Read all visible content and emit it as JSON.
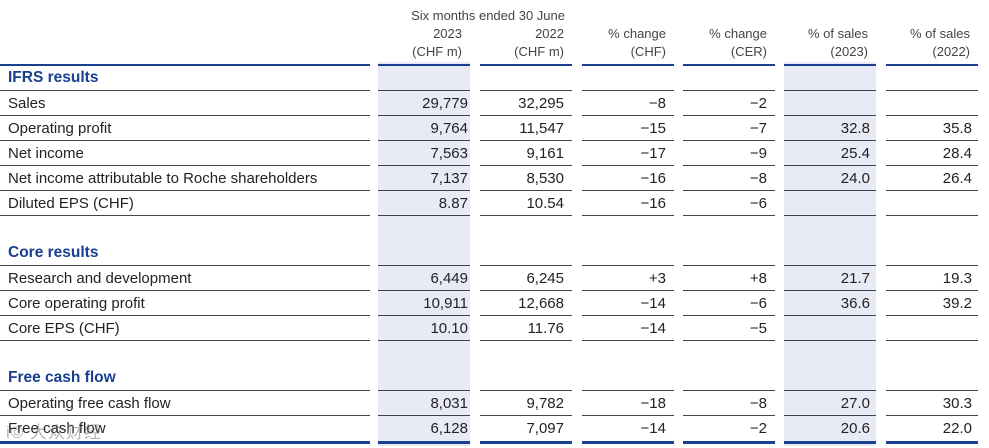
{
  "header": {
    "period": "Six months ended 30 June",
    "columns": [
      {
        "line1": "2023",
        "line2": "(CHF m)"
      },
      {
        "line1": "2022",
        "line2": "(CHF m)"
      },
      {
        "line1": "% change",
        "line2": "(CHF)"
      },
      {
        "line1": "% change",
        "line2": "(CER)"
      },
      {
        "line1": "% of sales",
        "line2": "(2023)"
      },
      {
        "line1": "% of sales",
        "line2": "(2022)"
      }
    ]
  },
  "sections": [
    {
      "title": "IFRS results",
      "rows": [
        {
          "label": "Sales",
          "v2023": "29,779",
          "v2022": "32,295",
          "chf": "−8",
          "cer": "−2",
          "ps2023": "",
          "ps2022": ""
        },
        {
          "label": "Operating profit",
          "v2023": "9,764",
          "v2022": "11,547",
          "chf": "−15",
          "cer": "−7",
          "ps2023": "32.8",
          "ps2022": "35.8"
        },
        {
          "label": "Net income",
          "v2023": "7,563",
          "v2022": "9,161",
          "chf": "−17",
          "cer": "−9",
          "ps2023": "25.4",
          "ps2022": "28.4"
        },
        {
          "label": "Net income attributable to Roche shareholders",
          "v2023": "7,137",
          "v2022": "8,530",
          "chf": "−16",
          "cer": "−8",
          "ps2023": "24.0",
          "ps2022": "26.4"
        },
        {
          "label": "Diluted EPS (CHF)",
          "v2023": "8.87",
          "v2022": "10.54",
          "chf": "−16",
          "cer": "−6",
          "ps2023": "",
          "ps2022": ""
        }
      ]
    },
    {
      "title": "Core results",
      "rows": [
        {
          "label": "Research and development",
          "v2023": "6,449",
          "v2022": "6,245",
          "chf": "+3",
          "cer": "+8",
          "ps2023": "21.7",
          "ps2022": "19.3"
        },
        {
          "label": "Core operating profit",
          "v2023": "10,911",
          "v2022": "12,668",
          "chf": "−14",
          "cer": "−6",
          "ps2023": "36.6",
          "ps2022": "39.2"
        },
        {
          "label": "Core EPS (CHF)",
          "v2023": "10.10",
          "v2022": "11.76",
          "chf": "−14",
          "cer": "−5",
          "ps2023": "",
          "ps2022": ""
        }
      ]
    },
    {
      "title": "Free cash flow",
      "rows": [
        {
          "label": "Operating free cash flow",
          "v2023": "8,031",
          "v2022": "9,782",
          "chf": "−18",
          "cer": "−8",
          "ps2023": "27.0",
          "ps2022": "30.3"
        },
        {
          "label": "Free cash flow",
          "v2023": "6,128",
          "v2022": "7,097",
          "chf": "−14",
          "cer": "−2",
          "ps2023": "20.6",
          "ps2022": "22.0"
        }
      ]
    }
  ],
  "watermark": "i© 大众财经",
  "colors": {
    "accent": "#1a3f8f",
    "shade": "#e8eaf6"
  }
}
